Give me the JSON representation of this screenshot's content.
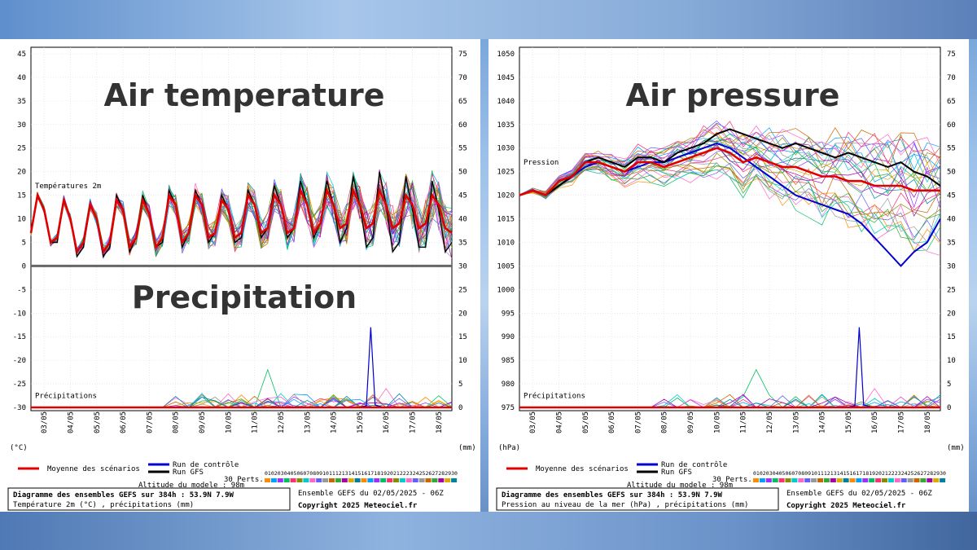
{
  "colors": {
    "mean": "#e00000",
    "control": "#0000d0",
    "gfs": "#000000"
  },
  "panels": [
    {
      "id": "temperature",
      "overlay_title": "Air temperature",
      "overlay_title2": "Precipitation",
      "left_unit": "(°C)",
      "right_unit": "(mm)",
      "inner_label_top": "Températures 2m",
      "inner_label_bottom": "Précipitations",
      "legend": {
        "mean": "Moyenne des scénarios",
        "control": "Run de contrôle",
        "gfs": "Run GFS",
        "perts": "30 Perts.",
        "altitude": "Altitude du modele : 98m"
      },
      "footer": {
        "title": "Diagramme des ensembles GEFS sur 384h : 53.9N 7.9W",
        "subtitle": "Température 2m (°C) , précipitations (mm)",
        "ensemble": "Ensemble GEFS du 02/05/2025 - 06Z",
        "copyright": "Copyright 2025 Meteociel.fr"
      }
    },
    {
      "id": "pressure",
      "overlay_title": "Air pressure",
      "left_unit": "(hPa)",
      "right_unit": "(mm)",
      "inner_label_top": "Pression",
      "inner_label_bottom": "Précipitations",
      "legend": {
        "mean": "Moyenne des scénarios",
        "control": "Run de contrôle",
        "gfs": "Run GFS",
        "perts": "30 Perts.",
        "altitude": "Altitude du modele : 98m"
      },
      "footer": {
        "title": "Diagramme des ensembles GEFS sur 384h : 53.9N 7.9W",
        "subtitle": "Pression au niveau de la mer (hPa) , précipitations (mm)",
        "ensemble": "Ensemble GEFS du 02/05/2025 - 06Z",
        "copyright": "Copyright 2025 Meteociel.fr"
      }
    }
  ],
  "chart_data": [
    {
      "type": "line",
      "left_axis_ticks": [
        45,
        40,
        35,
        30,
        25,
        20,
        15,
        10,
        5,
        0,
        -5,
        -10,
        -15,
        -20,
        -25,
        -30
      ],
      "right_axis_ticks": [
        75,
        70,
        65,
        60,
        55,
        50,
        45,
        40,
        35,
        30,
        25,
        20,
        15,
        10,
        5,
        0
      ],
      "x_ticks": [
        "03/05",
        "04/05",
        "05/05",
        "06/05",
        "07/05",
        "08/05",
        "09/05",
        "10/05",
        "11/05",
        "12/05",
        "13/05",
        "14/05",
        "15/05",
        "16/05",
        "17/05",
        "18/05"
      ],
      "x_range_hours": [
        0,
        384
      ],
      "temperature_mean_series": {
        "name": "Moyenne des scénarios",
        "x_hours": [
          0,
          6,
          12,
          18,
          24,
          30,
          36,
          42,
          48,
          54,
          60,
          66,
          72,
          78,
          84,
          90,
          96,
          102,
          108,
          114,
          120,
          126,
          132,
          138,
          144,
          150,
          156,
          162,
          168,
          174,
          180,
          186,
          192,
          198,
          204,
          210,
          216,
          222,
          228,
          234,
          240,
          246,
          252,
          258,
          264,
          270,
          276,
          282,
          288,
          294,
          300,
          306,
          312,
          318,
          324,
          330,
          336,
          342,
          348,
          354,
          360,
          366,
          372,
          378,
          384
        ],
        "values": [
          7,
          15,
          12,
          5,
          6,
          14,
          10,
          3,
          5,
          13,
          10,
          3,
          5,
          14,
          12,
          4,
          6,
          14,
          11,
          4,
          6,
          15,
          13,
          5,
          7,
          15,
          13,
          6,
          7,
          14,
          12,
          6,
          7,
          15,
          13,
          7,
          8,
          15,
          13,
          7,
          8,
          16,
          13,
          7,
          9,
          16,
          13,
          8,
          9,
          16,
          13,
          8,
          9,
          16,
          13,
          8,
          9,
          15,
          13,
          8,
          9,
          15,
          13,
          8,
          7
        ]
      },
      "temperature_gfs_series": {
        "name": "Run GFS",
        "x_hours": [
          0,
          6,
          12,
          18,
          24,
          30,
          36,
          42,
          48,
          54,
          60,
          66,
          72,
          78,
          84,
          90,
          96,
          102,
          108,
          114,
          120,
          126,
          132,
          138,
          144,
          150,
          156,
          162,
          168,
          174,
          180,
          186,
          192,
          198,
          204,
          210,
          216,
          222,
          228,
          234,
          240,
          246,
          252,
          258,
          264,
          270,
          276,
          282,
          288,
          294,
          300,
          306,
          312,
          318,
          324,
          330,
          336,
          342,
          348,
          354,
          360,
          366,
          372,
          378,
          384
        ],
        "values": [
          7,
          15,
          12,
          5,
          5,
          14,
          10,
          2,
          4,
          13,
          10,
          2,
          4,
          15,
          12,
          3,
          6,
          15,
          11,
          4,
          5,
          16,
          13,
          4,
          7,
          16,
          13,
          5,
          7,
          15,
          12,
          5,
          6,
          16,
          13,
          6,
          8,
          17,
          13,
          6,
          8,
          18,
          13,
          6,
          9,
          18,
          13,
          5,
          8,
          19,
          13,
          4,
          6,
          20,
          13,
          3,
          5,
          19,
          12,
          4,
          4,
          18,
          12,
          3,
          5
        ]
      },
      "precip_mean_series": {
        "name": "Moyenne des scénarios",
        "values_mm": [
          0,
          0,
          0,
          0,
          0,
          0,
          0,
          0,
          0,
          0,
          0,
          0,
          0,
          0,
          0,
          0,
          0,
          0,
          0,
          0,
          0,
          0,
          0,
          0,
          0,
          0,
          0,
          0,
          0,
          0,
          0,
          0,
          0,
          0,
          0,
          0,
          0,
          0,
          0,
          0,
          0,
          0,
          0,
          0,
          0,
          0,
          0,
          0,
          0,
          0,
          0,
          0,
          0,
          0,
          0,
          1,
          1,
          0,
          0,
          0,
          0,
          1,
          1,
          0,
          0
        ]
      },
      "precip_peak": {
        "time_hours": 310,
        "value_mm": 17
      }
    },
    {
      "type": "line",
      "left_axis_ticks": [
        1050,
        1045,
        1040,
        1035,
        1030,
        1025,
        1020,
        1015,
        1010,
        1005,
        1000,
        995,
        990,
        985,
        980,
        975
      ],
      "right_axis_ticks": [
        75,
        70,
        65,
        60,
        55,
        50,
        45,
        40,
        35,
        30,
        25,
        20,
        15,
        10,
        5,
        0
      ],
      "x_ticks": [
        "03/05",
        "04/05",
        "05/05",
        "06/05",
        "07/05",
        "08/05",
        "09/05",
        "10/05",
        "11/05",
        "12/05",
        "13/05",
        "14/05",
        "15/05",
        "16/05",
        "17/05",
        "18/05"
      ],
      "x_range_hours": [
        0,
        384
      ],
      "pressure_mean_series": {
        "name": "Moyenne des scénarios",
        "x_hours": [
          0,
          12,
          24,
          36,
          48,
          60,
          72,
          84,
          96,
          108,
          120,
          132,
          144,
          156,
          168,
          180,
          192,
          204,
          216,
          228,
          240,
          252,
          264,
          276,
          288,
          300,
          312,
          324,
          336,
          348,
          360,
          372,
          384
        ],
        "values": [
          1020,
          1021,
          1020,
          1023,
          1024,
          1027,
          1027,
          1026,
          1025,
          1027,
          1027,
          1026,
          1027,
          1028,
          1029,
          1030,
          1029,
          1027,
          1028,
          1027,
          1026,
          1026,
          1025,
          1024,
          1024,
          1023,
          1023,
          1022,
          1022,
          1022,
          1021,
          1021,
          1021
        ]
      },
      "pressure_gfs_series": {
        "name": "Run GFS",
        "x_hours": [
          0,
          12,
          24,
          36,
          48,
          60,
          72,
          84,
          96,
          108,
          120,
          132,
          144,
          156,
          168,
          180,
          192,
          204,
          216,
          228,
          240,
          252,
          264,
          276,
          288,
          300,
          312,
          324,
          336,
          348,
          360,
          372,
          384
        ],
        "values": [
          1020,
          1021,
          1020,
          1022,
          1024,
          1027,
          1028,
          1027,
          1026,
          1028,
          1028,
          1027,
          1029,
          1030,
          1031,
          1033,
          1034,
          1033,
          1032,
          1031,
          1030,
          1031,
          1030,
          1029,
          1028,
          1029,
          1028,
          1027,
          1026,
          1027,
          1025,
          1024,
          1022
        ]
      },
      "pressure_control_series": {
        "name": "Run de contrôle",
        "x_hours": [
          0,
          12,
          24,
          36,
          48,
          60,
          72,
          84,
          96,
          108,
          120,
          132,
          144,
          156,
          168,
          180,
          192,
          204,
          216,
          228,
          240,
          252,
          264,
          276,
          288,
          300,
          312,
          324,
          336,
          348,
          360,
          372,
          384
        ],
        "values": [
          1020,
          1021,
          1020,
          1022,
          1024,
          1026,
          1027,
          1026,
          1025,
          1026,
          1027,
          1027,
          1028,
          1029,
          1030,
          1031,
          1030,
          1028,
          1026,
          1024,
          1022,
          1020,
          1019,
          1018,
          1017,
          1016,
          1014,
          1011,
          1008,
          1005,
          1008,
          1010,
          1015
        ]
      },
      "precip_peak": {
        "time_hours": 310,
        "value_mm": 17
      }
    }
  ]
}
